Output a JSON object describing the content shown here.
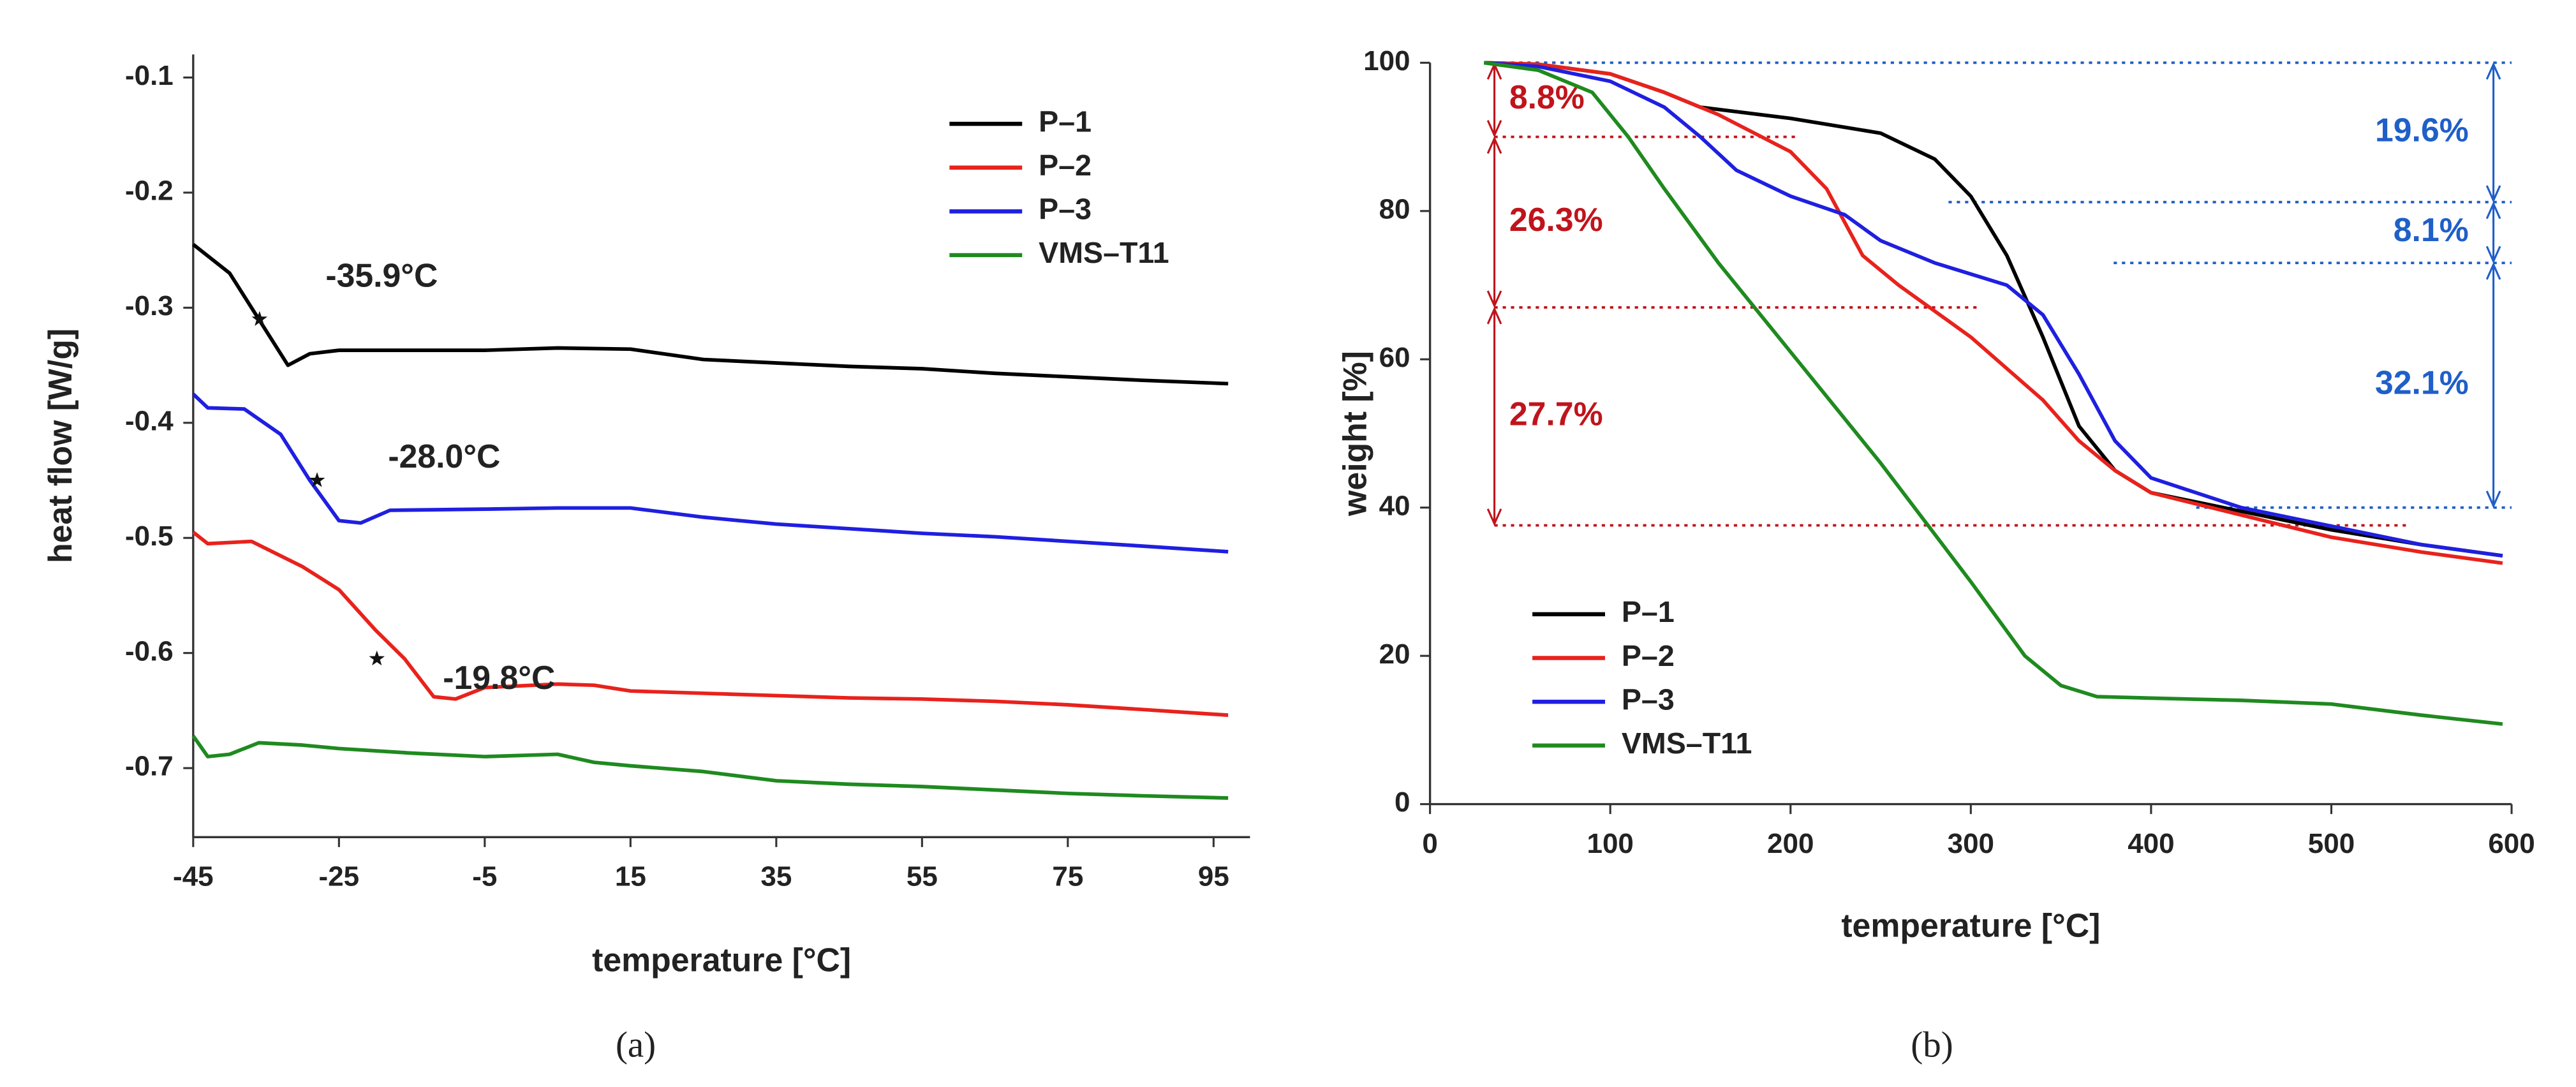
{
  "chart_data": [
    {
      "type": "line",
      "label": "(a)",
      "xlabel": "temperature [°C]",
      "ylabel": "heat flow [W/g]",
      "xlim": [
        -45,
        100
      ],
      "xticks": [
        -45,
        -25,
        -5,
        15,
        35,
        55,
        75,
        95
      ],
      "ylim": [
        -0.76,
        -0.08
      ],
      "yticks": [
        -0.1,
        -0.2,
        -0.3,
        -0.4,
        -0.5,
        -0.6,
        -0.7
      ],
      "series": [
        {
          "name": "P–1",
          "color": "#000000",
          "x": [
            -45,
            -40,
            -36,
            -32,
            -29,
            -25,
            -15,
            -5,
            5,
            15,
            25,
            35,
            45,
            55,
            65,
            75,
            85,
            97
          ],
          "values": [
            -0.245,
            -0.27,
            -0.31,
            -0.35,
            -0.34,
            -0.337,
            -0.337,
            -0.337,
            -0.335,
            -0.336,
            -0.345,
            -0.348,
            -0.351,
            -0.353,
            -0.357,
            -0.36,
            -0.363,
            -0.366
          ]
        },
        {
          "name": "P–2",
          "color": "#e8221c",
          "x": [
            -45,
            -43,
            -37,
            -30,
            -25,
            -20,
            -16,
            -12,
            -9,
            -5,
            5,
            10,
            15,
            25,
            35,
            45,
            55,
            65,
            75,
            85,
            97
          ],
          "values": [
            -0.495,
            -0.505,
            -0.503,
            -0.525,
            -0.545,
            -0.58,
            -0.605,
            -0.638,
            -0.64,
            -0.63,
            -0.627,
            -0.628,
            -0.633,
            -0.635,
            -0.637,
            -0.639,
            -0.64,
            -0.642,
            -0.645,
            -0.649,
            -0.654
          ]
        },
        {
          "name": "P–3",
          "color": "#1f1fe0",
          "x": [
            -45,
            -43,
            -38,
            -33,
            -29,
            -25,
            -22,
            -18,
            -5,
            5,
            15,
            25,
            35,
            45,
            55,
            65,
            75,
            85,
            97
          ],
          "values": [
            -0.375,
            -0.387,
            -0.388,
            -0.41,
            -0.45,
            -0.485,
            -0.487,
            -0.476,
            -0.475,
            -0.474,
            -0.474,
            -0.482,
            -0.488,
            -0.492,
            -0.496,
            -0.499,
            -0.503,
            -0.507,
            -0.512
          ]
        },
        {
          "name": "VMS–T11",
          "color": "#1f8a1f",
          "x": [
            -45,
            -43,
            -40,
            -36,
            -30,
            -25,
            -15,
            -5,
            5,
            10,
            15,
            25,
            35,
            45,
            55,
            65,
            75,
            85,
            97
          ],
          "values": [
            -0.672,
            -0.69,
            -0.688,
            -0.678,
            -0.68,
            -0.683,
            -0.687,
            -0.69,
            -0.688,
            -0.695,
            -0.698,
            -0.703,
            -0.711,
            -0.714,
            -0.716,
            -0.719,
            -0.722,
            -0.724,
            -0.726
          ]
        }
      ],
      "annotations": [
        {
          "text": "-35.9°C",
          "x": -35.9,
          "y": -0.31
        },
        {
          "text": "-28.0°C",
          "x": -28.0,
          "y": -0.45
        },
        {
          "text": "-19.8°C",
          "x": -19.8,
          "y": -0.605
        }
      ]
    },
    {
      "type": "line",
      "label": "(b)",
      "xlabel": "temperature [°C]",
      "ylabel": "weight [%]",
      "xlim": [
        0,
        600
      ],
      "xticks": [
        0,
        100,
        200,
        300,
        400,
        500,
        600
      ],
      "ylim": [
        0,
        100
      ],
      "yticks": [
        0,
        20,
        40,
        60,
        80,
        100
      ],
      "series": [
        {
          "name": "P–1",
          "color": "#000000",
          "x": [
            30,
            60,
            100,
            130,
            150,
            200,
            250,
            280,
            300,
            320,
            340,
            360,
            380,
            400,
            450,
            500,
            550,
            595
          ],
          "values": [
            100,
            99.8,
            98.5,
            96,
            94,
            92.5,
            90.5,
            87,
            82,
            74,
            63,
            51,
            45,
            42,
            39.5,
            37,
            35,
            33.5
          ]
        },
        {
          "name": "P–2",
          "color": "#e8221c",
          "x": [
            30,
            60,
            100,
            130,
            160,
            200,
            220,
            240,
            260,
            300,
            340,
            360,
            380,
            400,
            450,
            500,
            550,
            595
          ],
          "values": [
            100,
            99.8,
            98.5,
            96,
            93,
            88,
            83,
            74,
            70,
            63,
            54.5,
            49,
            45,
            42,
            39,
            36,
            34,
            32.5
          ]
        },
        {
          "name": "P–3",
          "color": "#1f1fe0",
          "x": [
            30,
            60,
            100,
            130,
            150,
            170,
            200,
            230,
            250,
            280,
            300,
            320,
            340,
            360,
            380,
            400,
            450,
            500,
            550,
            595
          ],
          "values": [
            100,
            99.5,
            97.5,
            94,
            90,
            85.5,
            82,
            79.5,
            76,
            73,
            71.5,
            70,
            66,
            58,
            49,
            44,
            40,
            37.5,
            35,
            33.5
          ]
        },
        {
          "name": "VMS–T11",
          "color": "#1f8a1f",
          "x": [
            30,
            60,
            90,
            110,
            130,
            160,
            200,
            250,
            300,
            330,
            350,
            370,
            400,
            450,
            500,
            550,
            595
          ],
          "values": [
            100,
            99,
            96,
            90,
            83,
            73,
            61,
            46,
            30,
            20,
            16,
            14.5,
            14.3,
            14,
            13.5,
            12,
            10.8
          ]
        }
      ],
      "left_levels": [
        100,
        90,
        67,
        37.6
      ],
      "left_labels": [
        "8.8%",
        "26.3%",
        "27.7%"
      ],
      "left_color": "#c0141c",
      "right_levels": [
        100,
        81.2,
        73,
        40
      ],
      "right_labels": [
        "19.6%",
        "8.1%",
        "32.1%"
      ],
      "right_color": "#1f5fc8"
    }
  ]
}
